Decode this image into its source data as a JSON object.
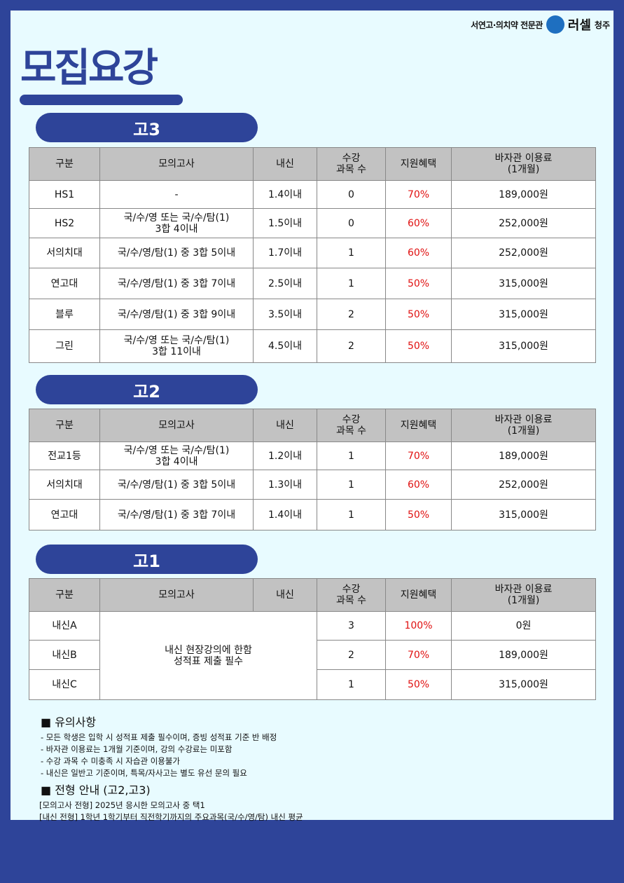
{
  "brand": {
    "subtitle": "서연고·의치약 전문관",
    "logo": "RU",
    "name": "러셀",
    "city": "청주"
  },
  "title": "모집요강",
  "headers": [
    "구분",
    "모의고사",
    "내신",
    "수강\n과목 수",
    "지원혜택",
    "바자관 이용료\n(1개월)"
  ],
  "sections": [
    {
      "label": "고3",
      "rows": [
        [
          "HS1",
          "-",
          "1.4이내",
          "0",
          "70%",
          "189,000원"
        ],
        [
          "HS2",
          "국/수/영 또는 국/수/탐(1)\n3합 4이내",
          "1.5이내",
          "0",
          "60%",
          "252,000원"
        ],
        [
          "서의치대",
          "국/수/영/탐(1) 중 3합 5이내",
          "1.7이내",
          "1",
          "60%",
          "252,000원"
        ],
        [
          "연고대",
          "국/수/영/탐(1) 중 3합 7이내",
          "2.5이내",
          "1",
          "50%",
          "315,000원"
        ],
        [
          "블루",
          "국/수/영/탐(1) 중 3합 9이내",
          "3.5이내",
          "2",
          "50%",
          "315,000원"
        ],
        [
          "그린",
          "국/수/영 또는  국/수/탐(1)\n3합 11이내",
          "4.5이내",
          "2",
          "50%",
          "315,000원"
        ]
      ]
    },
    {
      "label": "고2",
      "rows": [
        [
          "전교1등",
          "국/수/영 또는 국/수/탐(1)\n3합 4이내",
          "1.2이내",
          "1",
          "70%",
          "189,000원"
        ],
        [
          "서의치대",
          "국/수/영/탐(1) 중 3합 5이내",
          "1.3이내",
          "1",
          "60%",
          "252,000원"
        ],
        [
          "연고대",
          "국/수/영/탐(1) 중 3합 7이내",
          "1.4이내",
          "1",
          "50%",
          "315,000원"
        ]
      ]
    },
    {
      "label": "고1",
      "merged": "내신 현장강의에 한함\n성적표 제출 필수",
      "rows": [
        [
          "내신A",
          "3",
          "100%",
          "0원"
        ],
        [
          "내신B",
          "2",
          "70%",
          "189,000원"
        ],
        [
          "내신C",
          "1",
          "50%",
          "315,000원"
        ]
      ]
    }
  ],
  "notes": {
    "heading": "■ 유의사항",
    "items": [
      "- 모든 학생은 입학 시 성적표 제출 필수이며, 증빙 성적표 기준 반 배정",
      "- 바자관 이용료는 1개월 기준이며, 강의 수강료는 미포함",
      "- 수강 과목 수 미충족 시 자습관 이용불가",
      "- 내신은 일반고 기준이며, 특목/자사고는 별도 유선 문의 필요"
    ],
    "heading2": "■ 전형 안내 (고2,고3)",
    "items2": [
      "[모의고사 전형] 2025년 응시한 모의고사 중 택1",
      "[내신 전형] 1학년 1학기부터 직전학기까지의 주요과목(국/수/영/탐) 내신 평균"
    ]
  },
  "colors": {
    "brand": "#2e4499",
    "benefit": "#e01010",
    "panel": "#e8fbff",
    "header": "#c2c2c2"
  }
}
